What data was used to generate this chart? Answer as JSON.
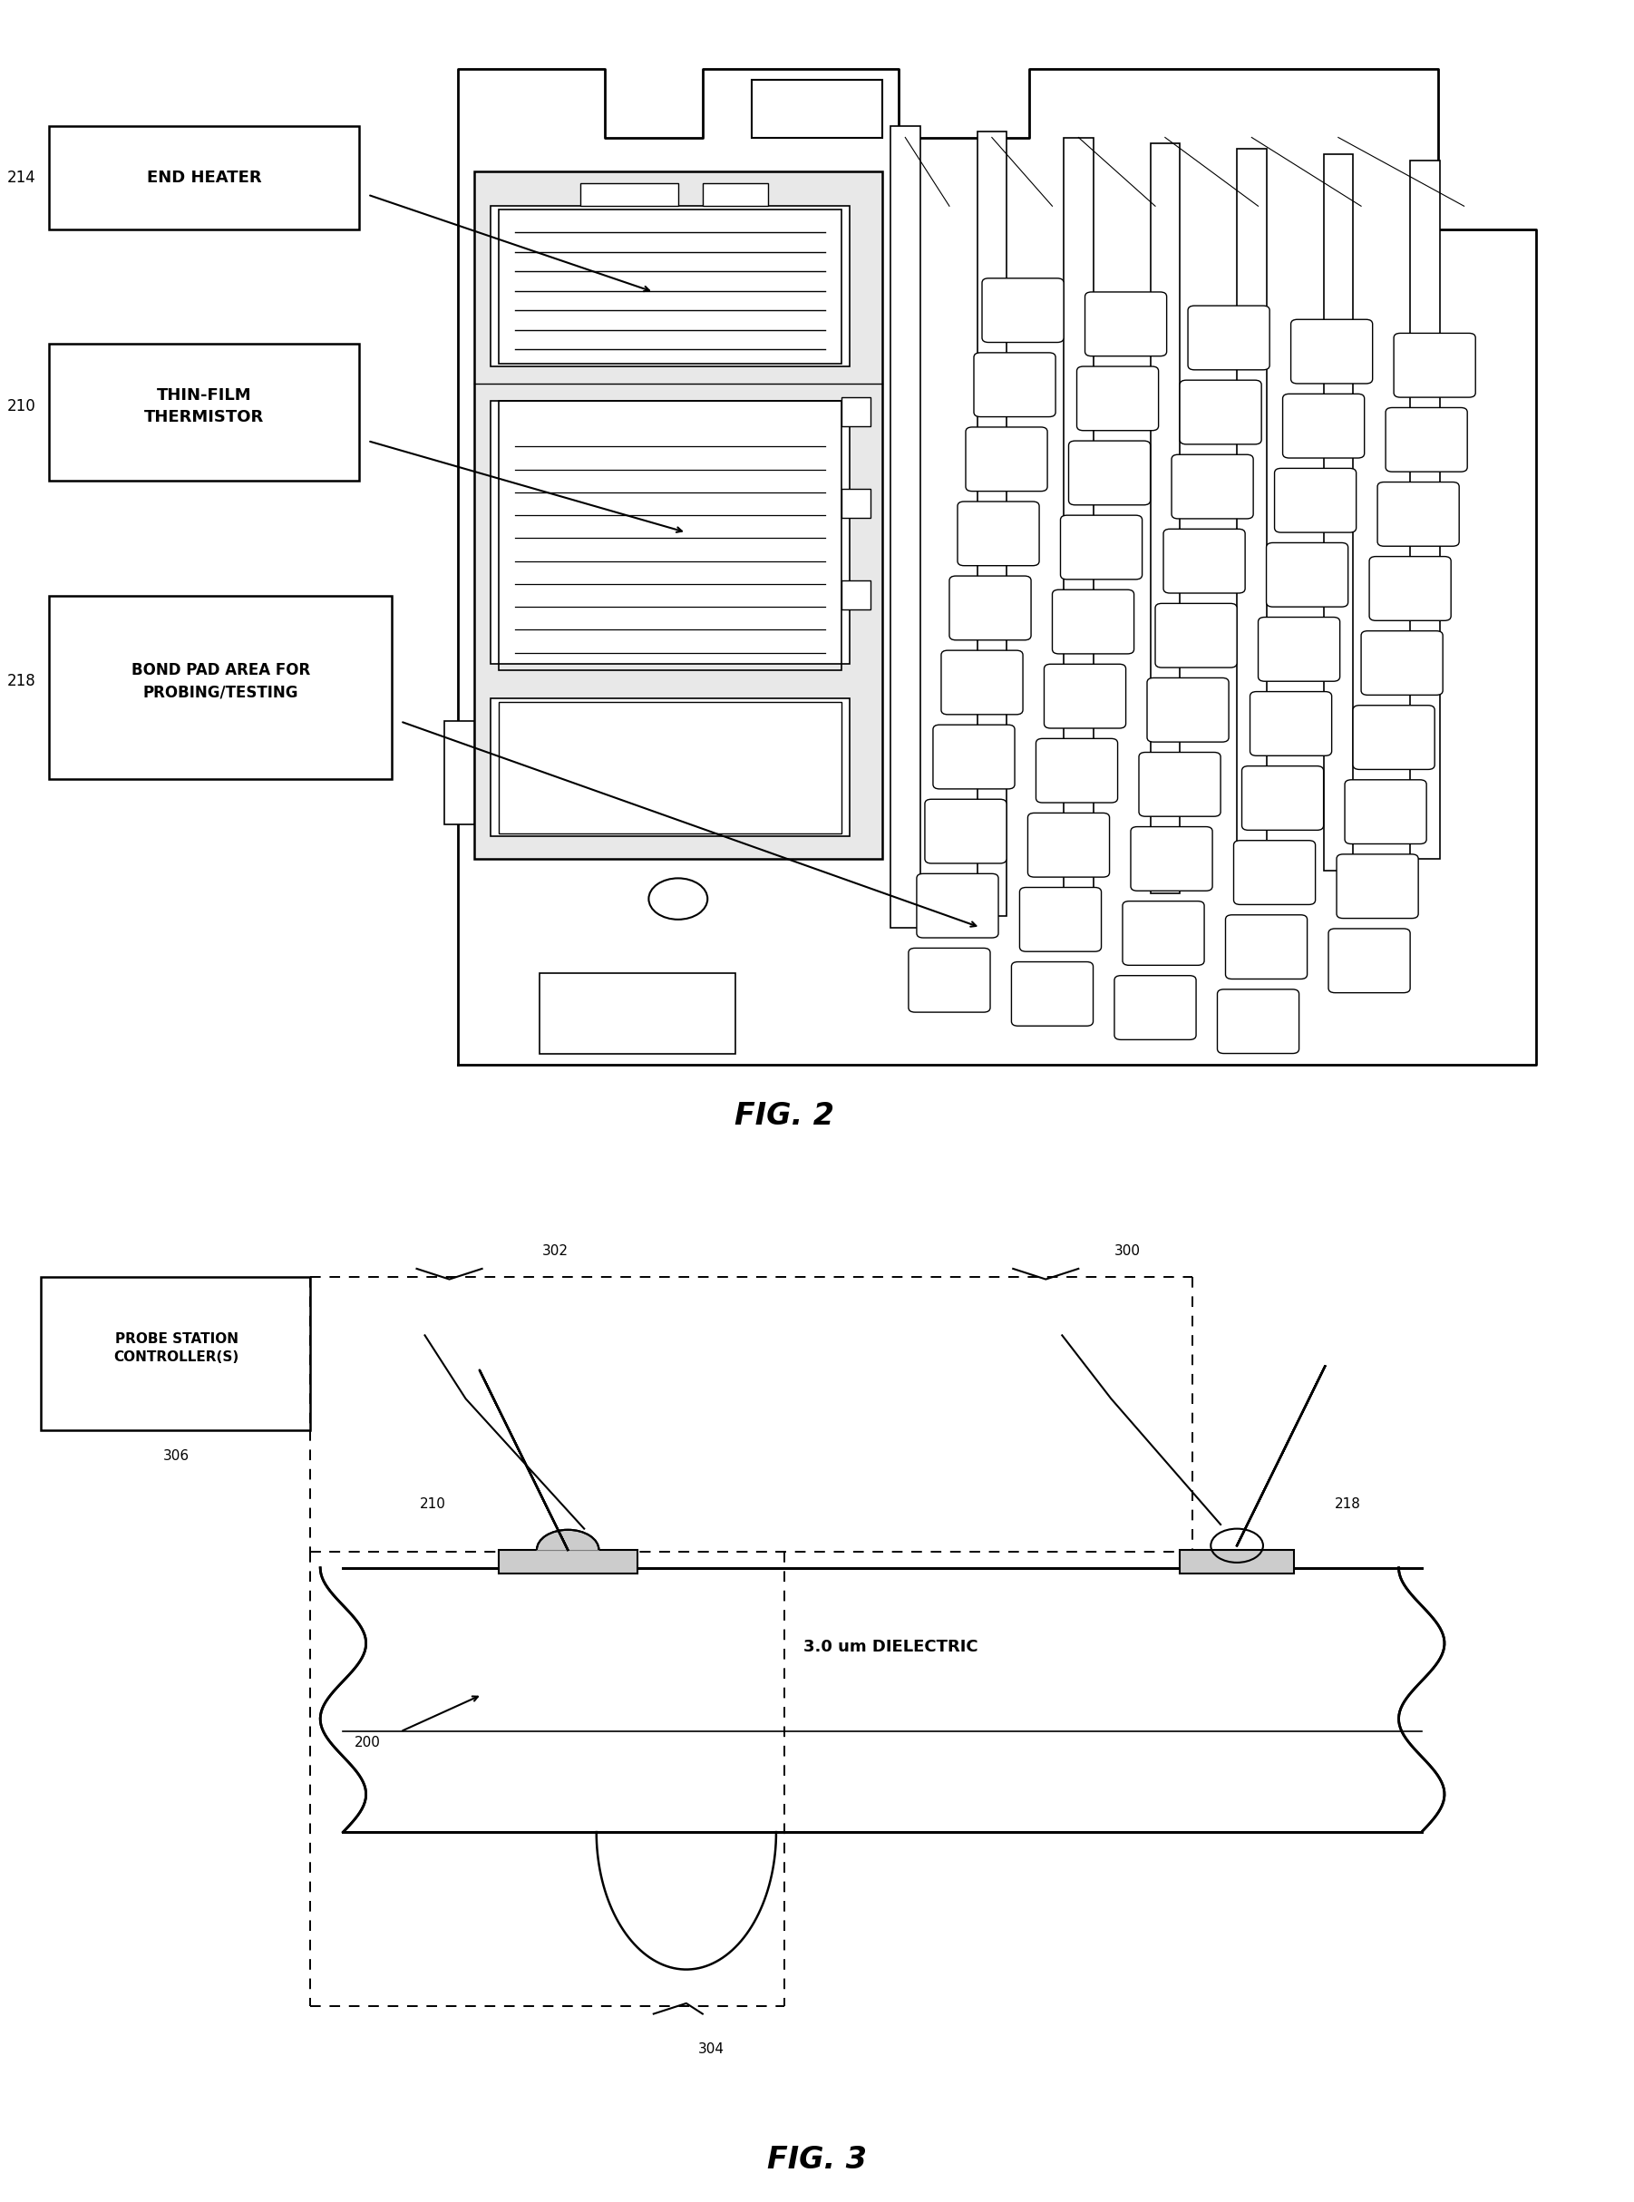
{
  "bg_color": "#ffffff",
  "fig2_title": "FIG. 2",
  "fig3_title": "FIG. 3",
  "dielectric_text": "3.0 um DIELECTRIC"
}
